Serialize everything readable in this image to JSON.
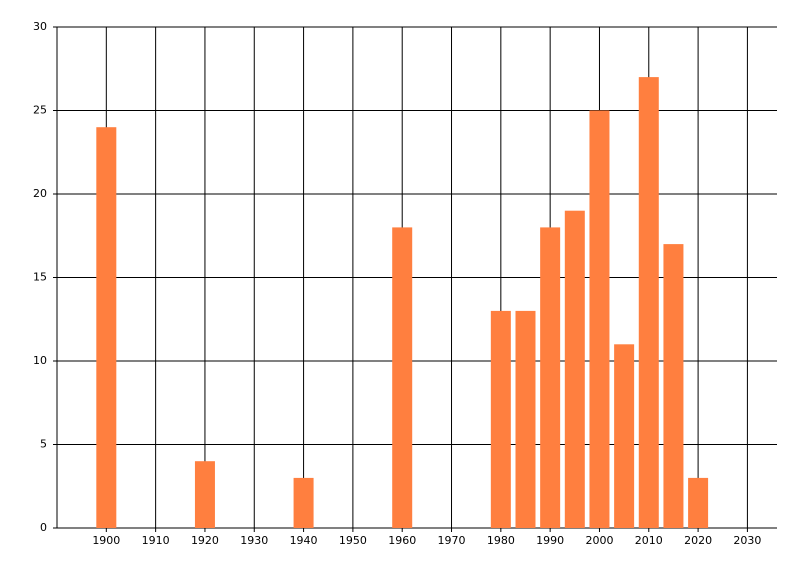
{
  "chart_data": {
    "type": "bar",
    "x": [
      1900,
      1920,
      1940,
      1960,
      1980,
      1985,
      1990,
      1995,
      2000,
      2005,
      2010,
      2015,
      2020
    ],
    "values": [
      24,
      4,
      3,
      18,
      13,
      13,
      18,
      19,
      25,
      11,
      27,
      17,
      3
    ],
    "color": "#ff7f3f",
    "xlim": [
      1890,
      2036
    ],
    "xticks": [
      1900,
      1910,
      1920,
      1930,
      1940,
      1950,
      1960,
      1970,
      1980,
      1990,
      2000,
      2010,
      2020,
      2030
    ],
    "ylim": [
      0,
      30
    ],
    "yticks": [
      0,
      5,
      10,
      15,
      20,
      25,
      30
    ],
    "grid": true
  }
}
